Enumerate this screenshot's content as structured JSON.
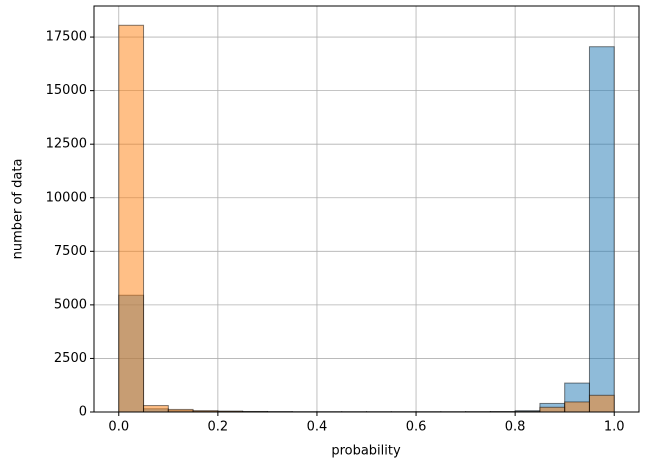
{
  "chart_data": {
    "type": "histogram",
    "xlabel": "probability",
    "ylabel": "number of data",
    "bins": [
      0,
      0.05,
      0.1,
      0.15,
      0.2,
      0.25,
      0.3,
      0.35,
      0.4,
      0.45,
      0.5,
      0.55,
      0.6,
      0.65,
      0.7,
      0.75,
      0.8,
      0.85,
      0.9,
      0.95,
      1
    ],
    "series": [
      {
        "color": "#1f77b4",
        "values": [
          5450,
          150,
          60,
          40,
          30,
          20,
          15,
          10,
          10,
          10,
          10,
          10,
          10,
          10,
          15,
          20,
          60,
          400,
          1350,
          17050
        ]
      },
      {
        "color": "#ff7f0e",
        "values": [
          18050,
          300,
          120,
          60,
          40,
          25,
          15,
          10,
          10,
          10,
          10,
          10,
          10,
          10,
          10,
          15,
          30,
          220,
          470,
          780
        ]
      }
    ],
    "opacity": 0.5,
    "xlim": [
      -0.05,
      1.05
    ],
    "ylim": [
      0,
      18950
    ],
    "xticks": [
      {
        "value": 0,
        "label": "0.0"
      },
      0.2,
      0.4,
      0.6,
      0.8,
      {
        "value": 1,
        "label": "1.0"
      }
    ],
    "yticks": [
      0,
      2500,
      5000,
      7500,
      10000,
      12500,
      15000,
      17500
    ],
    "grid": true
  }
}
